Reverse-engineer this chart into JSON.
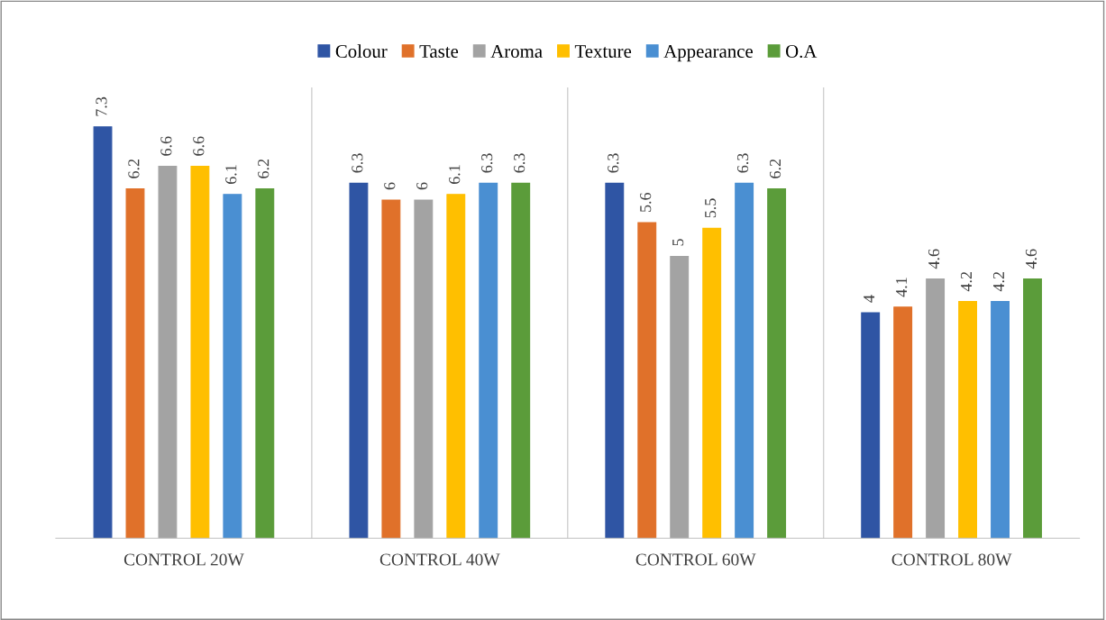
{
  "chart_data": {
    "type": "bar",
    "categories": [
      "CONTROL 20W",
      "CONTROL 40W",
      "CONTROL 60W",
      "CONTROL 80W"
    ],
    "series": [
      {
        "name": "Colour",
        "color": "#2f55a4",
        "values": [
          7.3,
          6.3,
          6.3,
          4
        ]
      },
      {
        "name": "Taste",
        "color": "#e0712a",
        "values": [
          6.2,
          6,
          5.6,
          4.1
        ]
      },
      {
        "name": "Aroma",
        "color": "#a3a3a3",
        "values": [
          6.6,
          6,
          5,
          4.6
        ]
      },
      {
        "name": "Texture",
        "color": "#ffbf00",
        "values": [
          6.6,
          6.1,
          5.5,
          4.2
        ]
      },
      {
        "name": "Appearance",
        "color": "#4a8fd2",
        "values": [
          6.1,
          6.3,
          6.3,
          4.2
        ]
      },
      {
        "name": "O.A",
        "color": "#5b9c3a",
        "values": [
          6.2,
          6.3,
          6.2,
          4.6
        ]
      }
    ],
    "data_labels": true,
    "legend": "top",
    "grid": "x",
    "tick_labels": "x"
  }
}
